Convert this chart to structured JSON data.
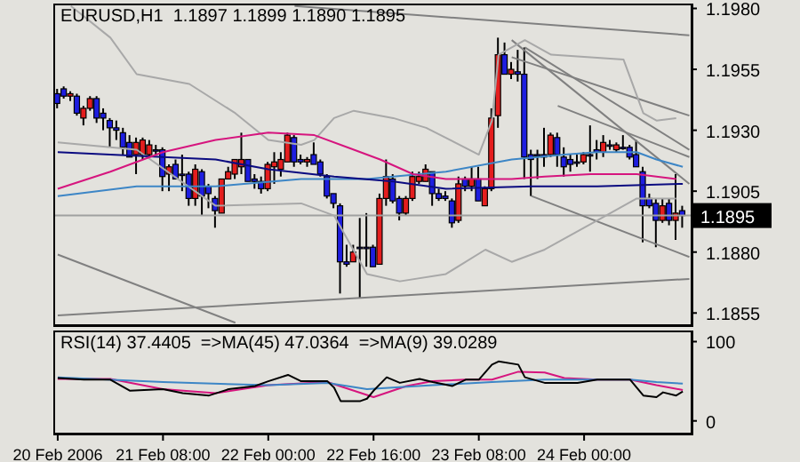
{
  "chart_data": [
    {
      "type": "candlestick",
      "title": "EURUSD,H1  1.1897 1.1899 1.1890 1.1895",
      "tick_labels": "y",
      "x": [
        "2006-02-20T16:00",
        "2006-02-20T17:00",
        "2006-02-20T18:00",
        "2006-02-20T19:00",
        "2006-02-20T20:00",
        "2006-02-20T21:00",
        "2006-02-20T22:00",
        "2006-02-20T23:00",
        "2006-02-21T00:00",
        "2006-02-21T01:00",
        "2006-02-21T02:00",
        "2006-02-21T03:00",
        "2006-02-21T04:00",
        "2006-02-21T05:00",
        "2006-02-21T06:00",
        "2006-02-21T07:00",
        "2006-02-21T08:00",
        "2006-02-21T09:00",
        "2006-02-21T10:00",
        "2006-02-21T11:00",
        "2006-02-21T12:00",
        "2006-02-21T13:00",
        "2006-02-21T14:00",
        "2006-02-21T15:00",
        "2006-02-21T16:00",
        "2006-02-21T17:00",
        "2006-02-21T18:00",
        "2006-02-21T19:00",
        "2006-02-21T20:00",
        "2006-02-21T21:00",
        "2006-02-21T22:00",
        "2006-02-21T23:00",
        "2006-02-22T00:00",
        "2006-02-22T01:00",
        "2006-02-22T02:00",
        "2006-02-22T03:00",
        "2006-02-22T04:00",
        "2006-02-22T05:00",
        "2006-02-22T06:00",
        "2006-02-22T07:00",
        "2006-02-22T08:00",
        "2006-02-22T09:00",
        "2006-02-22T10:00",
        "2006-02-22T11:00",
        "2006-02-22T12:00",
        "2006-02-22T13:00",
        "2006-02-22T14:00",
        "2006-02-22T15:00",
        "2006-02-22T16:00",
        "2006-02-22T17:00",
        "2006-02-22T18:00",
        "2006-02-22T19:00",
        "2006-02-22T20:00",
        "2006-02-22T21:00",
        "2006-02-22T22:00",
        "2006-02-22T23:00",
        "2006-02-23T00:00",
        "2006-02-23T01:00",
        "2006-02-23T02:00",
        "2006-02-23T03:00",
        "2006-02-23T04:00",
        "2006-02-23T05:00",
        "2006-02-23T06:00",
        "2006-02-23T07:00",
        "2006-02-23T08:00",
        "2006-02-23T09:00",
        "2006-02-23T10:00",
        "2006-02-23T11:00",
        "2006-02-23T12:00",
        "2006-02-23T13:00",
        "2006-02-23T14:00",
        "2006-02-23T15:00",
        "2006-02-23T16:00",
        "2006-02-23T17:00",
        "2006-02-23T18:00",
        "2006-02-23T19:00",
        "2006-02-23T20:00",
        "2006-02-23T21:00",
        "2006-02-23T22:00",
        "2006-02-23T23:00",
        "2006-02-24T00:00",
        "2006-02-24T01:00",
        "2006-02-24T02:00",
        "2006-02-24T03:00",
        "2006-02-24T04:00",
        "2006-02-24T05:00",
        "2006-02-24T06:00",
        "2006-02-24T07:00",
        "2006-02-24T08:00",
        "2006-02-24T09:00",
        "2006-02-24T10:00",
        "2006-02-24T11:00",
        "2006-02-24T12:00",
        "2006-02-24T13:00",
        "2006-02-24T14:00",
        "2006-02-24T15:00"
      ],
      "ohlc": [
        [
          1.1945,
          1.1947,
          1.1939,
          1.1941
        ],
        [
          1.1947,
          1.1948,
          1.1943,
          1.1944
        ],
        [
          1.1944,
          1.1946,
          1.1942,
          1.1945
        ],
        [
          1.1944,
          1.1945,
          1.1936,
          1.1937
        ],
        [
          1.1935,
          1.194,
          1.1932,
          1.1939
        ],
        [
          1.1939,
          1.1944,
          1.1938,
          1.1943
        ],
        [
          1.1943,
          1.1944,
          1.1933,
          1.1935
        ],
        [
          1.1937,
          1.1939,
          1.193,
          1.1935
        ],
        [
          1.1934,
          1.1935,
          1.1923,
          1.1931
        ],
        [
          1.1931,
          1.1934,
          1.1926,
          1.193
        ],
        [
          1.1929,
          1.1931,
          1.192,
          1.1923
        ],
        [
          1.1925,
          1.1928,
          1.1919,
          1.1919
        ],
        [
          1.192,
          1.1927,
          1.1912,
          1.1925
        ],
        [
          1.192,
          1.1927,
          1.1918,
          1.1926
        ],
        [
          1.192,
          1.1926,
          1.1919,
          1.1924
        ],
        [
          1.1922,
          1.1924,
          1.192,
          1.1922
        ],
        [
          1.1922,
          1.1923,
          1.1905,
          1.1911
        ],
        [
          1.1912,
          1.1916,
          1.1905,
          1.1915
        ],
        [
          1.1916,
          1.1918,
          1.191,
          1.191
        ],
        [
          1.1912,
          1.192,
          1.1905,
          1.1912
        ],
        [
          1.1912,
          1.1913,
          1.1899,
          1.1902
        ],
        [
          1.1902,
          1.1916,
          1.1899,
          1.1914
        ],
        [
          1.1913,
          1.1914,
          1.1895,
          1.1903
        ],
        [
          1.1907,
          1.1908,
          1.1898,
          1.1904
        ],
        [
          1.1902,
          1.1903,
          1.189,
          1.1897
        ],
        [
          1.1896,
          1.191,
          1.1896,
          1.191
        ],
        [
          1.191,
          1.1915,
          1.191,
          1.1913
        ],
        [
          1.1912,
          1.1918,
          1.191,
          1.1918
        ],
        [
          1.1915,
          1.1929,
          1.1912,
          1.1918
        ],
        [
          1.1918,
          1.1918,
          1.1909,
          1.1909
        ],
        [
          1.191,
          1.1912,
          1.1906,
          1.1909
        ],
        [
          1.1909,
          1.1911,
          1.1904,
          1.1906
        ],
        [
          1.1906,
          1.1917,
          1.1905,
          1.1916
        ],
        [
          1.1915,
          1.1921,
          1.1908,
          1.1917
        ],
        [
          1.1914,
          1.1921,
          1.1911,
          1.1918
        ],
        [
          1.1917,
          1.1929,
          1.1917,
          1.1928
        ],
        [
          1.1927,
          1.1928,
          1.1915,
          1.1917
        ],
        [
          1.1918,
          1.192,
          1.1916,
          1.1917
        ],
        [
          1.1917,
          1.1919,
          1.1915,
          1.1918
        ],
        [
          1.192,
          1.1925,
          1.1916,
          1.1916
        ],
        [
          1.1917,
          1.1918,
          1.1911,
          1.1912
        ],
        [
          1.1911,
          1.1912,
          1.1902,
          1.1903
        ],
        [
          1.1904,
          1.1904,
          1.1898,
          1.19
        ],
        [
          1.1899,
          1.19,
          1.1863,
          1.1876
        ],
        [
          1.1876,
          1.1883,
          1.1874,
          1.1875
        ],
        [
          1.1876,
          1.1883,
          1.1876,
          1.188
        ],
        [
          1.1882,
          1.1894,
          1.1861,
          1.1882
        ],
        [
          1.1882,
          1.1896,
          1.1874,
          1.1882
        ],
        [
          1.1882,
          1.1883,
          1.1874,
          1.1874
        ],
        [
          1.1875,
          1.1904,
          1.1875,
          1.1902
        ],
        [
          1.1902,
          1.1918,
          1.1899,
          1.1911
        ],
        [
          1.191,
          1.1912,
          1.19,
          1.1901
        ],
        [
          1.1902,
          1.1903,
          1.1893,
          1.1896
        ],
        [
          1.1896,
          1.1903,
          1.1895,
          1.1902
        ],
        [
          1.1902,
          1.1913,
          1.1901,
          1.1911
        ],
        [
          1.1909,
          1.1913,
          1.1908,
          1.1911
        ],
        [
          1.1909,
          1.1916,
          1.1909,
          1.1914
        ],
        [
          1.1913,
          1.1913,
          1.1899,
          1.1904
        ],
        [
          1.1904,
          1.1906,
          1.1901,
          1.1902
        ],
        [
          1.1903,
          1.1905,
          1.1901,
          1.1902
        ],
        [
          1.1901,
          1.1902,
          1.189,
          1.1892
        ],
        [
          1.1893,
          1.1911,
          1.1892,
          1.1908
        ],
        [
          1.191,
          1.1911,
          1.1905,
          1.1907
        ],
        [
          1.1907,
          1.1915,
          1.1905,
          1.191
        ],
        [
          1.191,
          1.1915,
          1.1901,
          1.1901
        ],
        [
          1.1899,
          1.1907,
          1.1899,
          1.1906
        ],
        [
          1.1906,
          1.1939,
          1.1905,
          1.1935
        ],
        [
          1.1936,
          1.1968,
          1.1931,
          1.1961
        ],
        [
          1.1961,
          1.1966,
          1.1953,
          1.1953
        ],
        [
          1.1953,
          1.1958,
          1.1951,
          1.1955
        ],
        [
          1.1954,
          1.1963,
          1.195,
          1.1953
        ],
        [
          1.1953,
          1.1964,
          1.191,
          1.1919
        ],
        [
          1.192,
          1.1922,
          1.1903,
          1.1918
        ],
        [
          1.192,
          1.1922,
          1.191,
          1.192
        ],
        [
          1.192,
          1.1931,
          1.1915,
          1.1919
        ],
        [
          1.192,
          1.1929,
          1.1919,
          1.1928
        ],
        [
          1.1927,
          1.1929,
          1.1915,
          1.192
        ],
        [
          1.1919,
          1.1923,
          1.1911,
          1.1915
        ],
        [
          1.1918,
          1.192,
          1.1913,
          1.1916
        ],
        [
          1.1917,
          1.192,
          1.1915,
          1.1917
        ],
        [
          1.1917,
          1.1921,
          1.1916,
          1.192
        ],
        [
          1.192,
          1.1932,
          1.1913,
          1.192
        ],
        [
          1.1922,
          1.1926,
          1.1918,
          1.1921
        ],
        [
          1.1921,
          1.1928,
          1.1919,
          1.1925
        ],
        [
          1.1924,
          1.1926,
          1.1922,
          1.1924
        ],
        [
          1.1922,
          1.1925,
          1.1921,
          1.1924
        ],
        [
          1.1923,
          1.1928,
          1.1922,
          1.1923
        ],
        [
          1.1923,
          1.1924,
          1.1918,
          1.1919
        ],
        [
          1.192,
          1.1926,
          1.1915,
          1.1915
        ],
        [
          1.1913,
          1.1915,
          1.1884,
          1.1899
        ],
        [
          1.1902,
          1.1904,
          1.1898,
          1.1899
        ],
        [
          1.19,
          1.1902,
          1.1882,
          1.1893
        ],
        [
          1.1893,
          1.1902,
          1.1892,
          1.1899
        ],
        [
          1.19,
          1.1902,
          1.1891,
          1.1893
        ],
        [
          1.1893,
          1.1912,
          1.1885,
          1.1896
        ],
        [
          1.1897,
          1.1899,
          1.189,
          1.1895
        ]
      ],
      "colors": [
        "#1e1ee0",
        "#1e1ee0",
        "#e41e1e",
        "#1e1ee0",
        "#e41e1e",
        "#e41e1e",
        "#1e1ee0",
        "#1e1ee0",
        "#1e1ee0",
        "#1e1ee0",
        "#1e1ee0",
        "#1e1ee0",
        "#e41e1e",
        "#e41e1e",
        "#e41e1e",
        "#1e1ee0",
        "#1e1ee0",
        "#e41e1e",
        "#1e1ee0",
        "#1e1ee0",
        "#1e1ee0",
        "#e41e1e",
        "#1e1ee0",
        "#1e1ee0",
        "#1e1ee0",
        "#e41e1e",
        "#e41e1e",
        "#e41e1e",
        "#e41e1e",
        "#1e1ee0",
        "#1e1ee0",
        "#1e1ee0",
        "#e41e1e",
        "#e41e1e",
        "#e41e1e",
        "#e41e1e",
        "#1e1ee0",
        "#1e1ee0",
        "#e41e1e",
        "#1e1ee0",
        "#1e1ee0",
        "#1e1ee0",
        "#1e1ee0",
        "#1e1ee0",
        "#1e1ee0",
        "#e41e1e",
        "#1e1ee0",
        "#1e1ee0",
        "#1e1ee0",
        "#e41e1e",
        "#e41e1e",
        "#1e1ee0",
        "#1e1ee0",
        "#e41e1e",
        "#e41e1e",
        "#e41e1e",
        "#e41e1e",
        "#1e1ee0",
        "#1e1ee0",
        "#1e1ee0",
        "#1e1ee0",
        "#e41e1e",
        "#1e1ee0",
        "#e41e1e",
        "#1e1ee0",
        "#e41e1e",
        "#e41e1e",
        "#e41e1e",
        "#1e1ee0",
        "#e41e1e",
        "#1e1ee0",
        "#1e1ee0",
        "#1e1ee0",
        "#1e1ee0",
        "#1e1ee0",
        "#e41e1e",
        "#1e1ee0",
        "#1e1ee0",
        "#1e1ee0",
        "#1e1ee0",
        "#e41e1e",
        "#1e1ee0",
        "#1e1ee0",
        "#e41e1e",
        "#1e1ee0",
        "#e41e1e",
        "#1e1ee0",
        "#1e1ee0",
        "#1e1ee0",
        "#1e1ee0",
        "#1e1ee0",
        "#1e1ee0",
        "#e41e1e",
        "#1e1ee0",
        "#e41e1e",
        "#1e1ee0"
      ],
      "series": [
        {
          "type": "line",
          "color": "#d6157e",
          "x": [
            "2006-02-20T16:00",
            "2006-02-21T00:00",
            "2006-02-21T08:00",
            "2006-02-21T16:00",
            "2006-02-22T00:00",
            "2006-02-22T07:00",
            "2006-02-22T12:00",
            "2006-02-22T17:00",
            "2006-02-22T22:00",
            "2006-02-23T03:00",
            "2006-02-23T08:00",
            "2006-02-23T13:00",
            "2006-02-23T18:00",
            "2006-02-24T01:00",
            "2006-02-24T08:00",
            "2006-02-24T14:00"
          ],
          "values": [
            1.1906,
            1.1913,
            1.1921,
            1.1926,
            1.1929,
            1.1928,
            1.1923,
            1.1918,
            1.1912,
            1.191,
            1.191,
            1.191,
            1.1911,
            1.1912,
            1.1912,
            1.191
          ]
        },
        {
          "type": "line",
          "color": "#0b0b80",
          "x": [
            "2006-02-20T16:00",
            "2006-02-21T08:00",
            "2006-02-21T16:00",
            "2006-02-22T00:00",
            "2006-02-22T10:00",
            "2006-02-22T19:00",
            "2006-02-23T03:00",
            "2006-02-23T16:00",
            "2006-02-24T02:00",
            "2006-02-24T15:00"
          ],
          "values": [
            1.1921,
            1.1919,
            1.1918,
            1.1914,
            1.1911,
            1.1909,
            1.1906,
            1.1907,
            1.1907,
            1.1908
          ]
        },
        {
          "type": "line",
          "color": "#3d86c6",
          "x": [
            "2006-02-20T16:00",
            "2006-02-21T04:00",
            "2006-02-21T16:00",
            "2006-02-22T05:00",
            "2006-02-22T15:00",
            "2006-02-23T03:00",
            "2006-02-23T13:00",
            "2006-02-23T21:00",
            "2006-02-24T02:00",
            "2006-02-24T08:00",
            "2006-02-24T11:00",
            "2006-02-24T15:00"
          ],
          "values": [
            1.1903,
            1.1907,
            1.1907,
            1.191,
            1.191,
            1.1913,
            1.1918,
            1.192,
            1.1921,
            1.1921,
            1.1918,
            1.1915
          ]
        },
        {
          "type": "line",
          "color": "#a8a8a8",
          "x": [
            "2006-02-20T18:00",
            "2006-02-21T00:00",
            "2006-02-21T04:00",
            "2006-02-21T12:00",
            "2006-02-21T19:00",
            "2006-02-22T00:00",
            "2006-02-22T05:00",
            "2006-02-22T07:00",
            "2006-02-22T10:00",
            "2006-02-22T13:00",
            "2006-02-22T19:00",
            "2006-02-23T00:00",
            "2006-02-23T08:00",
            "2006-02-23T10:00",
            "2006-02-23T11:00",
            "2006-02-23T15:00",
            "2006-02-23T19:00",
            "2006-02-24T06:00",
            "2006-02-24T09:00",
            "2006-02-24T11:00",
            "2006-02-24T14:00"
          ],
          "values": [
            1.1981,
            1.1968,
            1.1953,
            1.1949,
            1.1937,
            1.1926,
            1.1924,
            1.1926,
            1.1935,
            1.1938,
            1.1935,
            1.1931,
            1.192,
            1.1934,
            1.1961,
            1.1967,
            1.1961,
            1.1959,
            1.1937,
            1.1934,
            1.1935
          ]
        },
        {
          "type": "line",
          "color": "#a8a8a8",
          "x": [
            "2006-02-20T16:00",
            "2006-02-21T04:00",
            "2006-02-21T16:00",
            "2006-02-22T05:00",
            "2006-02-22T10:00",
            "2006-02-22T15:00",
            "2006-02-22T20:00",
            "2006-02-23T03:00",
            "2006-02-23T09:00",
            "2006-02-23T13:00",
            "2006-02-23T18:00",
            "2006-02-24T02:00",
            "2006-02-24T08:00",
            "2006-02-24T14:00"
          ],
          "values": [
            1.1925,
            1.1922,
            1.1899,
            1.19,
            1.1895,
            1.1871,
            1.1868,
            1.1871,
            1.1881,
            1.1876,
            1.1881,
            1.1893,
            1.1902,
            1.1902
          ]
        },
        {
          "type": "line",
          "color": "#808080",
          "x": [
            "2006-02-22T04:00",
            "2006-02-24T16:00"
          ],
          "values": [
            1.1981,
            1.1969
          ]
        },
        {
          "type": "line",
          "color": "#808080",
          "x": [
            "2006-02-20T16:00",
            "2006-02-24T16:00"
          ],
          "values": [
            1.1854,
            1.1869
          ]
        },
        {
          "type": "line",
          "color": "#808080",
          "x": [
            "2006-02-20T16:00",
            "2006-02-21T19:00"
          ],
          "values": [
            1.1879,
            1.1851
          ]
        },
        {
          "type": "line",
          "color": "#808080",
          "x": [
            "2006-02-23T13:00",
            "2006-02-24T16:00"
          ],
          "values": [
            1.1967,
            1.1908
          ]
        },
        {
          "type": "line",
          "color": "#808080",
          "x": [
            "2006-02-23T15:00",
            "2006-02-24T16:00"
          ],
          "values": [
            1.1964,
            1.1922
          ]
        },
        {
          "type": "line",
          "color": "#808080",
          "x": [
            "2006-02-23T20:00",
            "2006-02-24T16:00"
          ],
          "values": [
            1.194,
            1.1919
          ]
        },
        {
          "type": "line",
          "color": "#808080",
          "x": [
            "2006-02-23T13:00",
            "2006-02-24T16:00"
          ],
          "values": [
            1.196,
            1.1936
          ]
        },
        {
          "type": "line",
          "color": "#808080",
          "x": [
            "2006-02-23T16:00",
            "2006-02-24T16:00"
          ],
          "values": [
            1.1903,
            1.1878
          ]
        }
      ],
      "ref_lines": [
        {
          "axis": "y",
          "value": 1.1895,
          "label": "1.1895",
          "color": "#a0a0a0"
        }
      ],
      "xlim": [
        "2006-02-20T15:20",
        "2006-02-24T16:20"
      ],
      "ylim": [
        1.185,
        1.1982
      ],
      "yticks": [
        {
          "value": 1.198,
          "label": "1.1980"
        },
        {
          "value": 1.1955,
          "label": "1.1955"
        },
        {
          "value": 1.193,
          "label": "1.1930"
        },
        {
          "value": 1.1905,
          "label": "1.1905"
        },
        {
          "value": 1.188,
          "label": "1.1880"
        },
        {
          "value": 1.1855,
          "label": "1.1855"
        }
      ]
    },
    {
      "type": "line",
      "title": "RSI(14) 37.4405  =>MA(45) 47.0364  =>MA(9) 39.0289",
      "line_style": "solid",
      "marker": "none",
      "series": [
        {
          "color": "#000000",
          "x": [
            "2006-02-20T16:00",
            "2006-02-20T20:00",
            "2006-02-21T00:00",
            "2006-02-21T03:00",
            "2006-02-21T08:00",
            "2006-02-21T11:00",
            "2006-02-21T15:00",
            "2006-02-21T18:00",
            "2006-02-21T22:00",
            "2006-02-22T00:00",
            "2006-02-22T03:00",
            "2006-02-22T05:00",
            "2006-02-22T09:00",
            "2006-02-22T10:00",
            "2006-02-22T11:00",
            "2006-02-22T14:00",
            "2006-02-22T15:00",
            "2006-02-22T16:00",
            "2006-02-22T18:00",
            "2006-02-22T20:00",
            "2006-02-22T23:00",
            "2006-02-23T01:00",
            "2006-02-23T04:00",
            "2006-02-23T06:00",
            "2006-02-23T08:00",
            "2006-02-23T10:00",
            "2006-02-23T11:00",
            "2006-02-23T14:00",
            "2006-02-23T15:00",
            "2006-02-23T18:00",
            "2006-02-23T23:00",
            "2006-02-24T02:00",
            "2006-02-24T05:00",
            "2006-02-24T07:00",
            "2006-02-24T09:00",
            "2006-02-24T11:00",
            "2006-02-24T12:00",
            "2006-02-24T14:00",
            "2006-02-24T15:00"
          ],
          "values": [
            54,
            52,
            52,
            38,
            40,
            35,
            32,
            40,
            44,
            50,
            58,
            50,
            50,
            42,
            25,
            25,
            28,
            38,
            55,
            48,
            53,
            49,
            44,
            52,
            52,
            71,
            75,
            71,
            55,
            48,
            48,
            52,
            52,
            52,
            32,
            30,
            36,
            32,
            37
          ]
        },
        {
          "color": "#3d86c6",
          "x": [
            "2006-02-20T16:00",
            "2006-02-21T08:00",
            "2006-02-22T00:00",
            "2006-02-22T09:00",
            "2006-02-22T15:00",
            "2006-02-23T01:00",
            "2006-02-23T10:00",
            "2006-02-23T18:00",
            "2006-02-24T02:00",
            "2006-02-24T07:00",
            "2006-02-24T11:00",
            "2006-02-24T15:00"
          ],
          "values": [
            55,
            49,
            45,
            48,
            40,
            45,
            49,
            52,
            52,
            52,
            49,
            47
          ]
        },
        {
          "color": "#d6157e",
          "x": [
            "2006-02-20T16:00",
            "2006-02-21T00:00",
            "2006-02-21T08:00",
            "2006-02-21T16:00",
            "2006-02-22T00:00",
            "2006-02-22T09:00",
            "2006-02-22T16:00",
            "2006-02-22T21:00",
            "2006-02-23T01:00",
            "2006-02-23T06:00",
            "2006-02-23T10:00",
            "2006-02-23T14:00",
            "2006-02-23T18:00",
            "2006-02-23T21:00",
            "2006-02-24T02:00",
            "2006-02-24T07:00",
            "2006-02-24T11:00",
            "2006-02-24T15:00"
          ],
          "values": [
            53,
            53,
            40,
            35,
            45,
            49,
            30,
            44,
            50,
            52,
            52,
            62,
            61,
            54,
            52,
            52,
            45,
            39
          ]
        }
      ],
      "xlim": [
        "2006-02-20T15:20",
        "2006-02-24T16:20"
      ],
      "xticks": [
        {
          "value": "2006-02-20T16:00",
          "label": "20 Feb 2006"
        },
        {
          "value": "2006-02-21T08:00",
          "label": "21 Feb 08:00"
        },
        {
          "value": "2006-02-22T00:00",
          "label": "22 Feb 00:00"
        },
        {
          "value": "2006-02-22T16:00",
          "label": "22 Feb 16:00"
        },
        {
          "value": "2006-02-23T08:00",
          "label": "23 Feb 08:00"
        },
        {
          "value": "2006-02-24T00:00",
          "label": "24 Feb 00:00"
        }
      ],
      "ylim": [
        -16,
        114
      ],
      "yticks": [
        0,
        100
      ]
    }
  ]
}
